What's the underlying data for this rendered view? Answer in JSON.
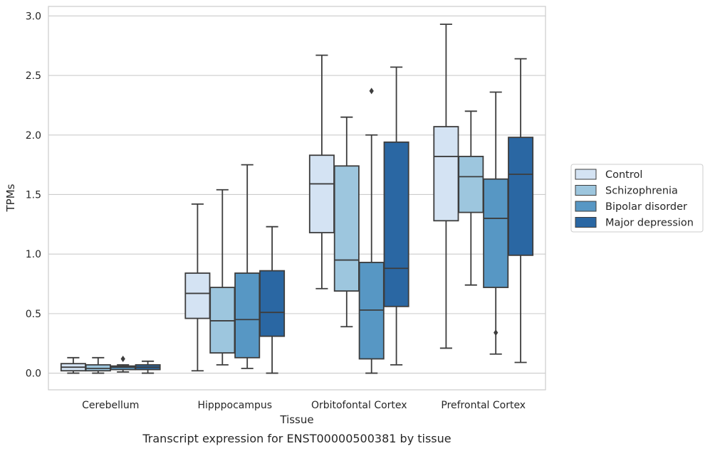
{
  "caption": "Transcript expression for ENST00000500381 by tissue",
  "chart_data": {
    "type": "box",
    "xlabel": "Tissue",
    "ylabel": "TPMs",
    "ylim": [
      -0.14,
      3.08
    ],
    "yticks": [
      "0.0",
      "0.5",
      "1.0",
      "1.5",
      "2.0",
      "2.5",
      "3.0"
    ],
    "grid": "horizontal",
    "legend_position": "right",
    "categories": [
      "Cerebellum",
      "Hipppocampus",
      "Orbitofontal Cortex",
      "Prefrontal Cortex"
    ],
    "series": [
      {
        "name": "Control",
        "color": "#d4e3f3",
        "boxes": [
          {
            "whislo": 0.0,
            "q1": 0.02,
            "med": 0.05,
            "q3": 0.08,
            "whishi": 0.13,
            "fliers": []
          },
          {
            "whislo": 0.02,
            "q1": 0.46,
            "med": 0.67,
            "q3": 0.84,
            "whishi": 1.42,
            "fliers": []
          },
          {
            "whislo": 0.71,
            "q1": 1.18,
            "med": 1.59,
            "q3": 1.83,
            "whishi": 2.67,
            "fliers": []
          },
          {
            "whislo": 0.21,
            "q1": 1.28,
            "med": 1.82,
            "q3": 2.07,
            "whishi": 2.93,
            "fliers": []
          }
        ]
      },
      {
        "name": "Schizophrenia",
        "color": "#9dc6de",
        "boxes": [
          {
            "whislo": 0.0,
            "q1": 0.02,
            "med": 0.04,
            "q3": 0.07,
            "whishi": 0.13,
            "fliers": []
          },
          {
            "whislo": 0.07,
            "q1": 0.17,
            "med": 0.44,
            "q3": 0.72,
            "whishi": 1.54,
            "fliers": []
          },
          {
            "whislo": 0.39,
            "q1": 0.69,
            "med": 0.95,
            "q3": 1.74,
            "whishi": 2.15,
            "fliers": []
          },
          {
            "whislo": 0.74,
            "q1": 1.35,
            "med": 1.65,
            "q3": 1.82,
            "whishi": 2.2,
            "fliers": []
          }
        ]
      },
      {
        "name": "Bipolar disorder",
        "color": "#5797c4",
        "boxes": [
          {
            "whislo": 0.01,
            "q1": 0.03,
            "med": 0.05,
            "q3": 0.06,
            "whishi": 0.07,
            "fliers": [
              0.12
            ]
          },
          {
            "whislo": 0.04,
            "q1": 0.13,
            "med": 0.45,
            "q3": 0.84,
            "whishi": 1.75,
            "fliers": []
          },
          {
            "whislo": 0.0,
            "q1": 0.12,
            "med": 0.53,
            "q3": 0.93,
            "whishi": 2.0,
            "fliers": [
              2.37
            ]
          },
          {
            "whislo": 0.16,
            "q1": 0.72,
            "med": 1.3,
            "q3": 1.63,
            "whishi": 2.36,
            "fliers": [
              0.34
            ]
          }
        ]
      },
      {
        "name": "Major depression",
        "color": "#2a67a3",
        "boxes": [
          {
            "whislo": 0.0,
            "q1": 0.03,
            "med": 0.05,
            "q3": 0.07,
            "whishi": 0.1,
            "fliers": []
          },
          {
            "whislo": 0.0,
            "q1": 0.31,
            "med": 0.51,
            "q3": 0.86,
            "whishi": 1.23,
            "fliers": []
          },
          {
            "whislo": 0.07,
            "q1": 0.56,
            "med": 0.88,
            "q3": 1.94,
            "whishi": 2.57,
            "fliers": []
          },
          {
            "whislo": 0.09,
            "q1": 0.99,
            "med": 1.67,
            "q3": 1.98,
            "whishi": 2.64,
            "fliers": []
          }
        ]
      }
    ]
  }
}
